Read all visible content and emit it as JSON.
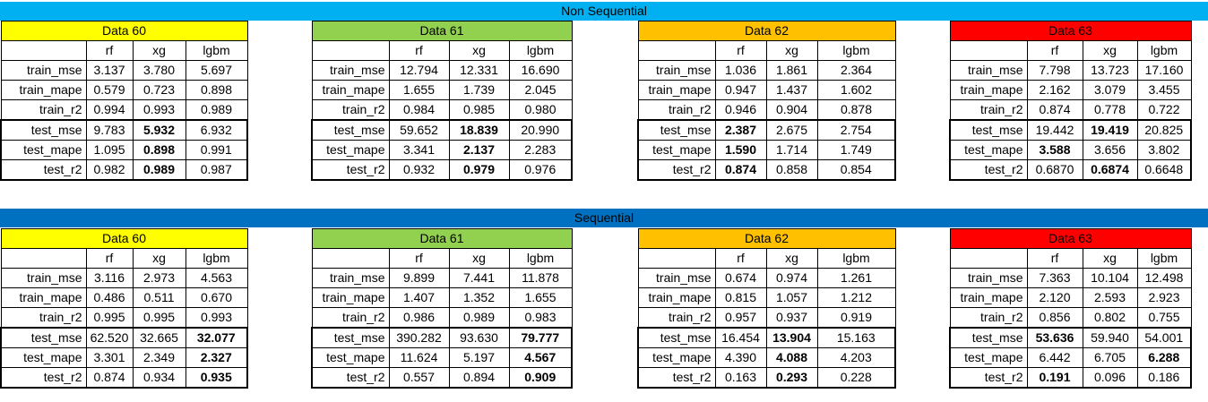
{
  "sections": [
    {
      "title": "Non Sequential",
      "tables": [
        {
          "title": "Data 60",
          "color": "#ffff00",
          "cols": [
            "rf",
            "xg",
            "lgbm"
          ],
          "rows": [
            {
              "label": "train_mse",
              "vals": [
                "3.137",
                "3.780",
                "5.697"
              ],
              "bold": -1
            },
            {
              "label": "train_mape",
              "vals": [
                "0.579",
                "0.723",
                "0.898"
              ],
              "bold": -1
            },
            {
              "label": "train_r2",
              "vals": [
                "0.994",
                "0.993",
                "0.989"
              ],
              "bold": -1
            },
            {
              "label": "test_mse",
              "vals": [
                "9.783",
                "5.932",
                "6.932"
              ],
              "bold": 1
            },
            {
              "label": "test_mape",
              "vals": [
                "1.095",
                "0.898",
                "0.991"
              ],
              "bold": 1
            },
            {
              "label": "test_r2",
              "vals": [
                "0.982",
                "0.989",
                "0.987"
              ],
              "bold": 1
            }
          ]
        },
        {
          "title": "Data 61",
          "color": "#92d050",
          "cols": [
            "rf",
            "xg",
            "lgbm"
          ],
          "rows": [
            {
              "label": "train_mse",
              "vals": [
                "12.794",
                "12.331",
                "16.690"
              ],
              "bold": -1
            },
            {
              "label": "train_mape",
              "vals": [
                "1.655",
                "1.739",
                "2.045"
              ],
              "bold": -1
            },
            {
              "label": "train_r2",
              "vals": [
                "0.984",
                "0.985",
                "0.980"
              ],
              "bold": -1
            },
            {
              "label": "test_mse",
              "vals": [
                "59.652",
                "18.839",
                "20.990"
              ],
              "bold": 1
            },
            {
              "label": "test_mape",
              "vals": [
                "3.341",
                "2.137",
                "2.283"
              ],
              "bold": 1
            },
            {
              "label": "test_r2",
              "vals": [
                "0.932",
                "0.979",
                "0.976"
              ],
              "bold": 1
            }
          ]
        },
        {
          "title": "Data 62",
          "color": "#ffc000",
          "cols": [
            "rf",
            "xg",
            "lgbm"
          ],
          "rows": [
            {
              "label": "train_mse",
              "vals": [
                "1.036",
                "1.861",
                "2.364"
              ],
              "bold": -1
            },
            {
              "label": "train_mape",
              "vals": [
                "0.947",
                "1.437",
                "1.602"
              ],
              "bold": -1
            },
            {
              "label": "train_r2",
              "vals": [
                "0.946",
                "0.904",
                "0.878"
              ],
              "bold": -1
            },
            {
              "label": "test_mse",
              "vals": [
                "2.387",
                "2.675",
                "2.754"
              ],
              "bold": 0
            },
            {
              "label": "test_mape",
              "vals": [
                "1.590",
                "1.714",
                "1.749"
              ],
              "bold": 0
            },
            {
              "label": "test_r2",
              "vals": [
                "0.874",
                "0.858",
                "0.854"
              ],
              "bold": 0
            }
          ]
        },
        {
          "title": "Data 63",
          "color": "#ff0000",
          "cols": [
            "rf",
            "xg",
            "lgbm"
          ],
          "rows": [
            {
              "label": "train_mse",
              "vals": [
                "7.798",
                "13.723",
                "17.160"
              ],
              "bold": -1
            },
            {
              "label": "train_mape",
              "vals": [
                "2.162",
                "3.079",
                "3.455"
              ],
              "bold": -1
            },
            {
              "label": "train_r2",
              "vals": [
                "0.874",
                "0.778",
                "0.722"
              ],
              "bold": -1
            },
            {
              "label": "test_mse",
              "vals": [
                "19.442",
                "19.419",
                "20.825"
              ],
              "bold": 1
            },
            {
              "label": "test_mape",
              "vals": [
                "3.588",
                "3.656",
                "3.802"
              ],
              "bold": 0
            },
            {
              "label": "test_r2",
              "vals": [
                "0.6870",
                "0.6874",
                "0.6648"
              ],
              "bold": 1
            }
          ]
        }
      ]
    },
    {
      "title": "Sequential",
      "tables": [
        {
          "title": "Data 60",
          "color": "#ffff00",
          "cols": [
            "rf",
            "xg",
            "lgbm"
          ],
          "rows": [
            {
              "label": "train_mse",
              "vals": [
                "3.116",
                "2.973",
                "4.563"
              ],
              "bold": -1
            },
            {
              "label": "train_mape",
              "vals": [
                "0.486",
                "0.511",
                "0.670"
              ],
              "bold": -1
            },
            {
              "label": "train_r2",
              "vals": [
                "0.995",
                "0.995",
                "0.993"
              ],
              "bold": -1
            },
            {
              "label": "test_mse",
              "vals": [
                "62.520",
                "32.665",
                "32.077"
              ],
              "bold": 2
            },
            {
              "label": "test_mape",
              "vals": [
                "3.301",
                "2.349",
                "2.327"
              ],
              "bold": 2
            },
            {
              "label": "test_r2",
              "vals": [
                "0.874",
                "0.934",
                "0.935"
              ],
              "bold": 2
            }
          ]
        },
        {
          "title": "Data 61",
          "color": "#92d050",
          "cols": [
            "rf",
            "xg",
            "lgbm"
          ],
          "rows": [
            {
              "label": "train_mse",
              "vals": [
                "9.899",
                "7.441",
                "11.878"
              ],
              "bold": -1
            },
            {
              "label": "train_mape",
              "vals": [
                "1.407",
                "1.352",
                "1.655"
              ],
              "bold": -1
            },
            {
              "label": "train_r2",
              "vals": [
                "0.986",
                "0.989",
                "0.983"
              ],
              "bold": -1
            },
            {
              "label": "test_mse",
              "vals": [
                "390.282",
                "93.630",
                "79.777"
              ],
              "bold": 2
            },
            {
              "label": "test_mape",
              "vals": [
                "11.624",
                "5.197",
                "4.567"
              ],
              "bold": 2
            },
            {
              "label": "test_r2",
              "vals": [
                "0.557",
                "0.894",
                "0.909"
              ],
              "bold": 2
            }
          ]
        },
        {
          "title": "Data 62",
          "color": "#ffc000",
          "cols": [
            "rf",
            "xg",
            "lgbm"
          ],
          "rows": [
            {
              "label": "train_mse",
              "vals": [
                "0.674",
                "0.974",
                "1.261"
              ],
              "bold": -1
            },
            {
              "label": "train_mape",
              "vals": [
                "0.815",
                "1.057",
                "1.212"
              ],
              "bold": -1
            },
            {
              "label": "train_r2",
              "vals": [
                "0.957",
                "0.937",
                "0.919"
              ],
              "bold": -1
            },
            {
              "label": "test_mse",
              "vals": [
                "16.454",
                "13.904",
                "15.163"
              ],
              "bold": 1
            },
            {
              "label": "test_mape",
              "vals": [
                "4.390",
                "4.088",
                "4.203"
              ],
              "bold": 1
            },
            {
              "label": "test_r2",
              "vals": [
                "0.163",
                "0.293",
                "0.228"
              ],
              "bold": 1
            }
          ]
        },
        {
          "title": "Data 63",
          "color": "#ff0000",
          "cols": [
            "rf",
            "xg",
            "lgbm"
          ],
          "rows": [
            {
              "label": "train_mse",
              "vals": [
                "7.363",
                "10.104",
                "12.498"
              ],
              "bold": -1
            },
            {
              "label": "train_mape",
              "vals": [
                "2.120",
                "2.593",
                "2.923"
              ],
              "bold": -1
            },
            {
              "label": "train_r2",
              "vals": [
                "0.856",
                "0.802",
                "0.755"
              ],
              "bold": -1
            },
            {
              "label": "test_mse",
              "vals": [
                "53.636",
                "59.940",
                "54.001"
              ],
              "bold": 0
            },
            {
              "label": "test_mape",
              "vals": [
                "6.442",
                "6.705",
                "6.288"
              ],
              "bold": 2
            },
            {
              "label": "test_r2",
              "vals": [
                "0.191",
                "0.096",
                "0.186"
              ],
              "bold": 0
            }
          ]
        }
      ]
    }
  ]
}
